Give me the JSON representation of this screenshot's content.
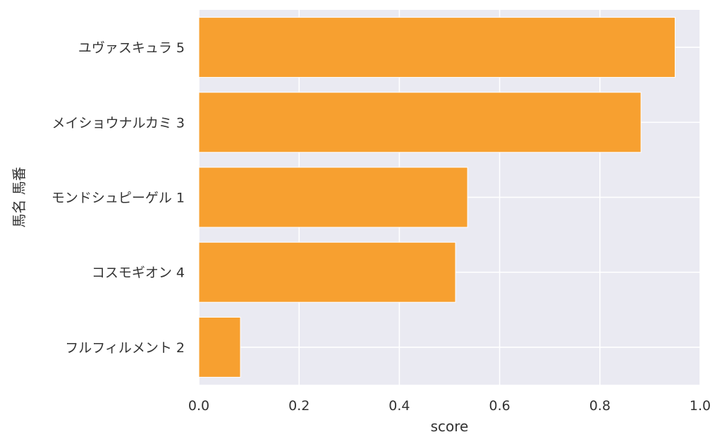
{
  "chart_data": {
    "type": "bar",
    "orientation": "horizontal",
    "categories": [
      "ユヴァスキュラ 5",
      "メイショウナルカミ 3",
      "モンドシュピーゲル 1",
      "コスモギオン 4",
      "フルフィルメント 2"
    ],
    "values": [
      0.95,
      0.882,
      0.536,
      0.512,
      0.083
    ],
    "xlabel": "score",
    "ylabel": "馬名 馬番",
    "xlim": [
      0.0,
      1.0
    ],
    "xticks": [
      "0.0",
      "0.2",
      "0.4",
      "0.6",
      "0.8",
      "1.0"
    ],
    "grid": true,
    "colors": {
      "bar": "#f7a030",
      "background": "#eaeaf2",
      "grid": "#ffffff"
    }
  }
}
